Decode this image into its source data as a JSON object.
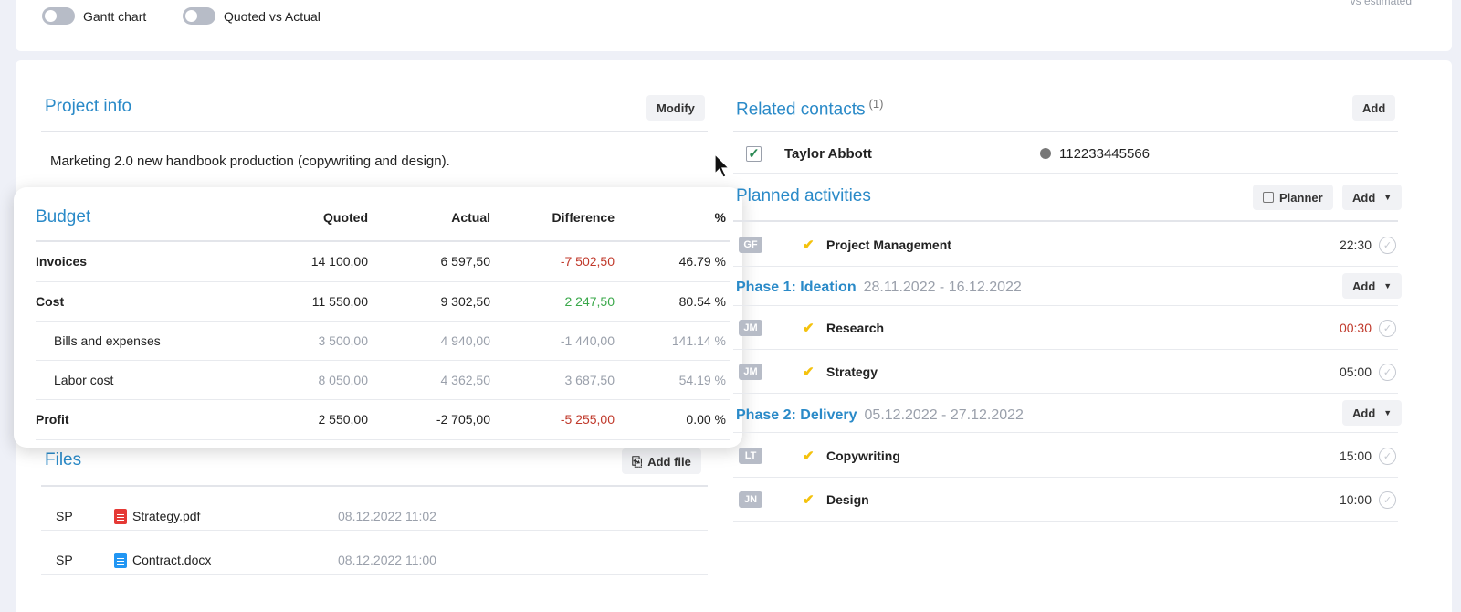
{
  "toggles": [
    {
      "label": "Gantt chart"
    },
    {
      "label": "Quoted vs Actual"
    }
  ],
  "top_right_text": "vs estimated",
  "project_info": {
    "title": "Project info",
    "modify_label": "Modify",
    "description": "Marketing 2.0 new handbook production (copywriting and design)."
  },
  "budget": {
    "title": "Budget",
    "headers": [
      "Quoted",
      "Actual",
      "Difference",
      "%"
    ],
    "rows": [
      {
        "label": "Invoices",
        "quoted": "14 100,00",
        "actual": "6 597,50",
        "difference": "-7 502,50",
        "percent": "46.79 %"
      },
      {
        "label": "Cost",
        "quoted": "11 550,00",
        "actual": "9 302,50",
        "difference": "2 247,50",
        "percent": "80.54 %"
      },
      {
        "label": "Bills and expenses",
        "quoted": "3 500,00",
        "actual": "4 940,00",
        "difference": "-1 440,00",
        "percent": "141.14 %"
      },
      {
        "label": "Labor cost",
        "quoted": "8 050,00",
        "actual": "4 362,50",
        "difference": "3 687,50",
        "percent": "54.19 %"
      },
      {
        "label": "Profit",
        "quoted": "2 550,00",
        "actual": "-2 705,00",
        "difference": "-5 255,00",
        "percent": "0.00 %"
      }
    ],
    "colors": {
      "negative": "#c0392b",
      "positive": "#3aa84a"
    }
  },
  "files": {
    "title": "Files",
    "add_label": "Add file",
    "items": [
      {
        "user": "SP",
        "name": "Strategy.pdf",
        "date": "08.12.2022 11:02",
        "icon": "pdf-file-icon"
      },
      {
        "user": "SP",
        "name": "Contract.docx",
        "date": "08.12.2022 11:00",
        "icon": "doc-file-icon"
      }
    ]
  },
  "contacts": {
    "title": "Related contacts",
    "count": "(1)",
    "add_label": "Add",
    "items": [
      {
        "name": "Taylor Abbott",
        "phone": "112233445566"
      }
    ]
  },
  "activities": {
    "title": "Planned activities",
    "planner_label": "Planner",
    "add_label": "Add",
    "general": [
      {
        "initials": "GF",
        "name": "Project Management",
        "time": "22:30"
      }
    ],
    "phases": [
      {
        "name": "Phase 1: Ideation",
        "dates": "28.11.2022 - 16.12.2022",
        "add_label": "Add",
        "items": [
          {
            "initials": "JM",
            "name": "Research",
            "time": "00:30",
            "overdue": true
          },
          {
            "initials": "JM",
            "name": "Strategy",
            "time": "05:00"
          }
        ]
      },
      {
        "name": "Phase 2: Delivery",
        "dates": "05.12.2022 - 27.12.2022",
        "add_label": "Add",
        "items": [
          {
            "initials": "LT",
            "name": "Copywriting",
            "time": "15:00"
          },
          {
            "initials": "JN",
            "name": "Design",
            "time": "10:00"
          }
        ]
      }
    ]
  },
  "accent_color": "#2a8ac8"
}
